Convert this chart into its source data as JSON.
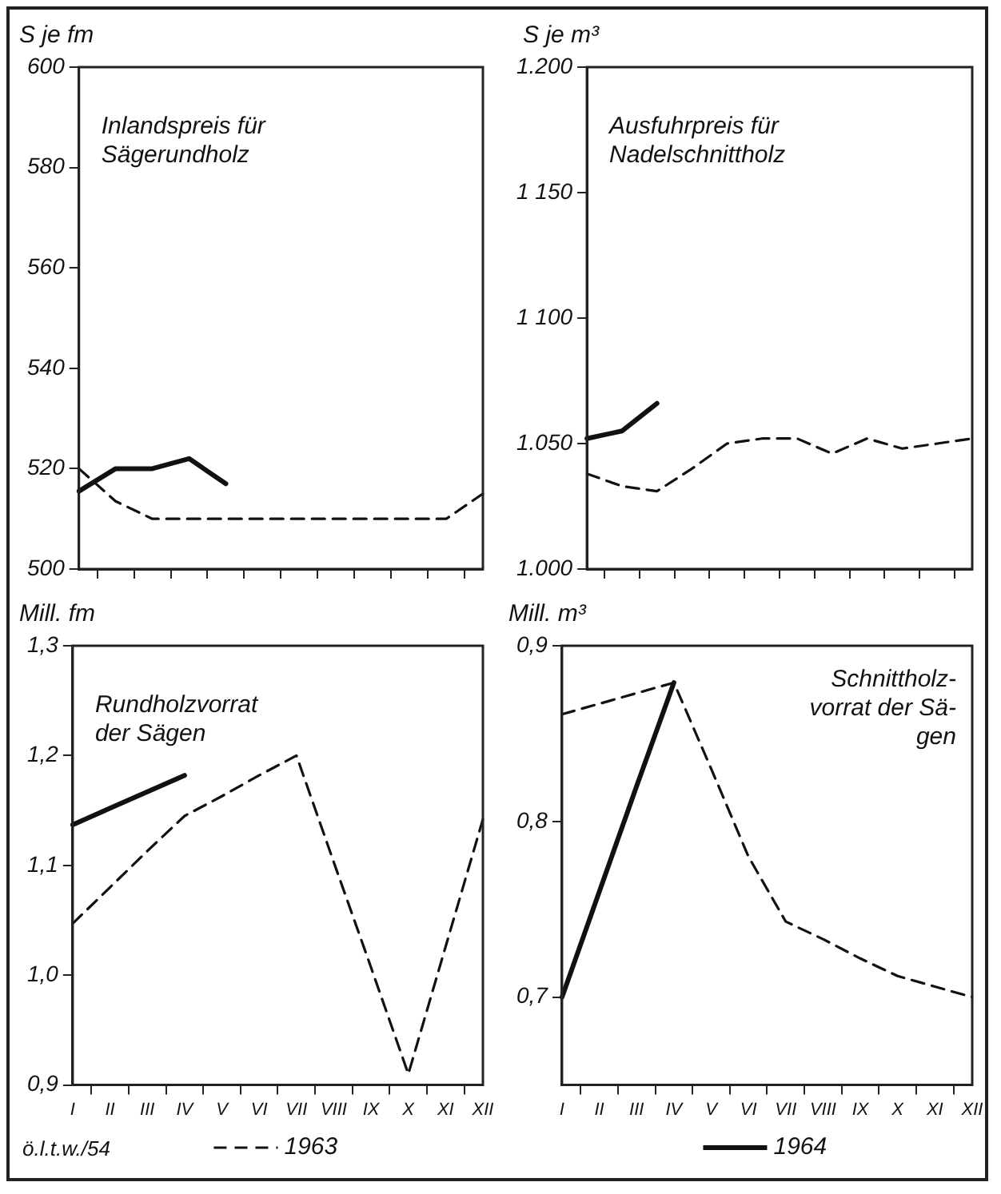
{
  "chart_data": [
    {
      "type": "line",
      "title": "Inlandspreis für\nSägerundholz",
      "ylabel": "S je fm",
      "ylim": [
        500,
        600
      ],
      "yticks": [
        500,
        520,
        540,
        560,
        580,
        600
      ],
      "categories": [
        null,
        null,
        null,
        null,
        null,
        null,
        null,
        null,
        null,
        null,
        null,
        null
      ],
      "tick_labels": "y",
      "grid": false,
      "legend": false,
      "marker": "none",
      "series": [
        {
          "color": "#111111",
          "line_style": "dashed",
          "values": [
            520,
            513.5,
            510,
            510,
            510,
            510,
            510,
            510,
            510,
            510,
            510,
            515
          ]
        },
        {
          "color": "#111111",
          "line_style": "solid",
          "values": [
            515.5,
            520,
            520,
            522,
            517,
            null,
            null,
            null,
            null,
            null,
            null,
            null
          ]
        }
      ]
    },
    {
      "type": "line",
      "title": "Ausfuhrpreis für\nNadelschnittholz",
      "ylabel": "S je m³",
      "ylim": [
        1000,
        1200
      ],
      "yticks": [
        {
          "value": 1000,
          "label": "1.000"
        },
        {
          "value": 1050,
          "label": "1.050"
        },
        {
          "value": 1100,
          "label": "1 100"
        },
        {
          "value": 1150,
          "label": "1 150"
        },
        {
          "value": 1200,
          "label": "1.200"
        }
      ],
      "categories": [
        null,
        null,
        null,
        null,
        null,
        null,
        null,
        null,
        null,
        null,
        null,
        null
      ],
      "tick_labels": "y",
      "grid": false,
      "legend": false,
      "marker": "none",
      "series": [
        {
          "color": "#111111",
          "line_style": "dashed",
          "values": [
            1038,
            1033,
            1031,
            1040,
            1050,
            1052,
            1052,
            1046,
            1052,
            1048,
            1050,
            1052
          ]
        },
        {
          "color": "#111111",
          "line_style": "solid",
          "values": [
            1052,
            1055,
            1066,
            null,
            null,
            null,
            null,
            null,
            null,
            null,
            null,
            null
          ]
        }
      ]
    },
    {
      "type": "line",
      "title": "Rundholzvorrat\nder Sägen",
      "ylabel": "Mill. fm",
      "ylim": [
        0.9,
        1.3
      ],
      "yticks": [
        {
          "value": 0.9,
          "label": "0,9"
        },
        {
          "value": 1.0,
          "label": "1,0"
        },
        {
          "value": 1.1,
          "label": "1,1"
        },
        {
          "value": 1.2,
          "label": "1,2"
        },
        {
          "value": 1.3,
          "label": "1,3"
        }
      ],
      "categories": [
        "I",
        "II",
        "III",
        "IV",
        "V",
        "VI",
        "VII",
        "VIII",
        "IX",
        "X",
        "XI",
        "XII"
      ],
      "grid": false,
      "legend": "bottom",
      "marker": "none",
      "annotations": [
        "ö.l.t.w./54"
      ],
      "series": [
        {
          "name": "1963",
          "color": "#111111",
          "line_style": "dashed",
          "values": [
            1.047,
            1.08,
            1.113,
            1.145,
            1.163,
            1.182,
            1.2,
            1.103,
            1.007,
            0.91,
            1.026,
            1.142
          ]
        },
        {
          "color": "#111111",
          "line_style": "solid",
          "values": [
            1.137,
            1.152,
            1.167,
            1.182,
            null,
            null,
            null,
            null,
            null,
            null,
            null,
            null
          ]
        }
      ]
    },
    {
      "type": "line",
      "title": "Schnittholz-\nvorrat der Sä-\ngen",
      "ylabel": "Mill. m³",
      "ylim": [
        0.65,
        0.9
      ],
      "yticks": [
        {
          "value": 0.7,
          "label": "0,7"
        },
        {
          "value": 0.8,
          "label": "0,8"
        },
        {
          "value": 0.9,
          "label": "0,9"
        }
      ],
      "categories": [
        "I",
        "II",
        "III",
        "IV",
        "V",
        "VI",
        "VII",
        "VIII",
        "IX",
        "X",
        "XI",
        "XII"
      ],
      "grid": false,
      "legend": "bottom",
      "marker": "none",
      "series": [
        {
          "color": "#111111",
          "line_style": "dashed",
          "values": [
            0.861,
            0.867,
            0.873,
            0.879,
            0.83,
            0.78,
            0.743,
            0.733,
            0.722,
            0.712,
            0.706,
            0.7
          ]
        },
        {
          "name": "1964",
          "color": "#111111",
          "line_style": "solid",
          "values": [
            0.7,
            0.76,
            0.82,
            0.879,
            null,
            null,
            null,
            null,
            null,
            null,
            null,
            null
          ]
        }
      ]
    }
  ]
}
